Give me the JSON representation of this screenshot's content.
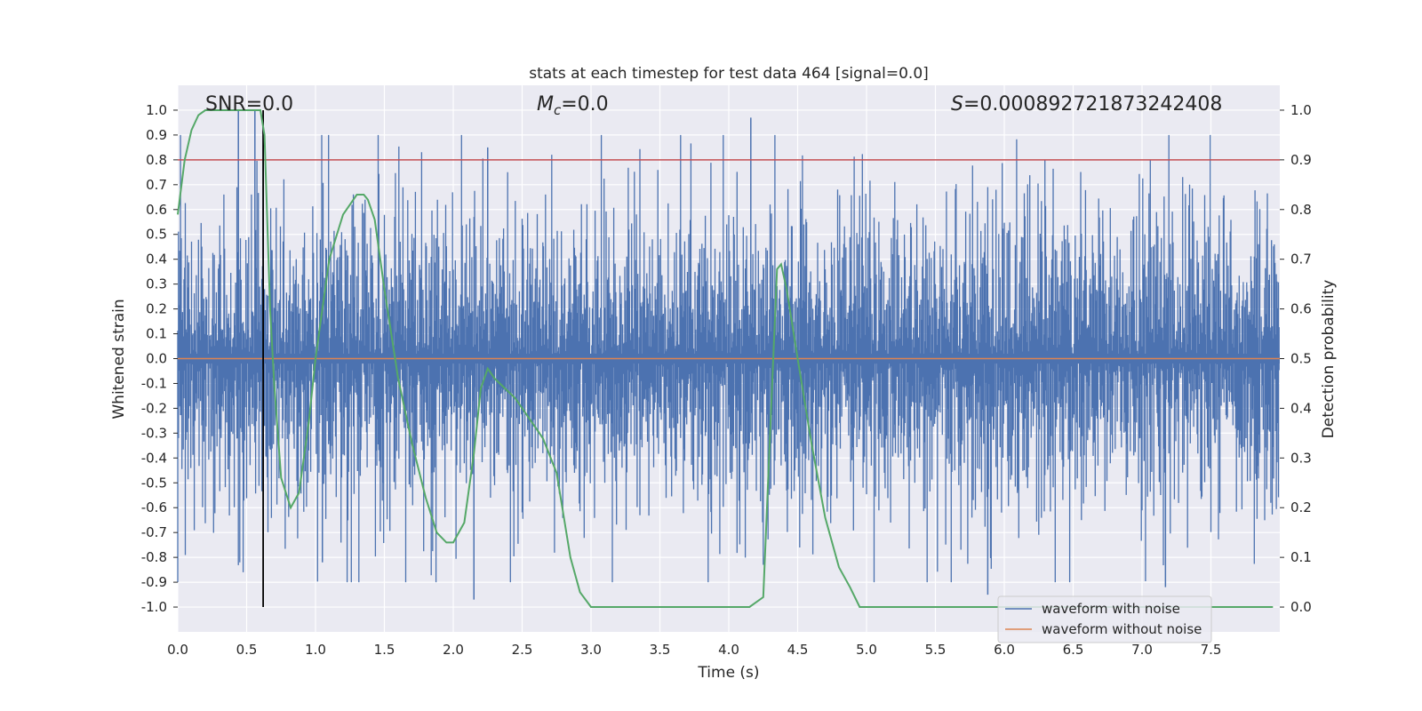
{
  "chart_data": {
    "type": "line",
    "title": "stats at each timestep for test data 464 [signal=0.0]",
    "xlabel": "Time (s)",
    "ylabel": "Whitened strain",
    "y2label": "Detection probability",
    "xlim": [
      0.0,
      8.0
    ],
    "ylim": [
      -1.1,
      1.1
    ],
    "y2lim": [
      -0.05,
      1.05
    ],
    "xticks": [
      0.0,
      0.5,
      1.0,
      1.5,
      2.0,
      2.5,
      3.0,
      3.5,
      4.0,
      4.5,
      5.0,
      5.5,
      6.0,
      6.5,
      7.0,
      7.5
    ],
    "xtick_labels": [
      "0.0",
      "0.5",
      "1.0",
      "1.5",
      "2.0",
      "2.5",
      "3.0",
      "3.5",
      "4.0",
      "4.5",
      "5.0",
      "5.5",
      "6.0",
      "6.5",
      "7.0",
      "7.5"
    ],
    "yticks": [
      1.0,
      0.9,
      0.8,
      0.7,
      0.6,
      0.5,
      0.4,
      0.3,
      0.2,
      0.1,
      0.0,
      -0.1,
      -0.2,
      -0.3,
      -0.4,
      -0.5,
      -0.6,
      -0.7,
      -0.8,
      -0.9,
      -1.0
    ],
    "ytick_labels": [
      "1.0",
      "0.9",
      "0.8",
      "0.7",
      "0.6",
      "0.5",
      "0.4",
      "0.3",
      "0.2",
      "0.1",
      "0.0",
      "-0.1",
      "-0.2",
      "-0.3",
      "-0.4",
      "-0.5",
      "-0.6",
      "-0.7",
      "-0.8",
      "-0.9",
      "-1.0"
    ],
    "y2ticks": [
      1.0,
      0.9,
      0.8,
      0.7,
      0.6,
      0.5,
      0.4,
      0.3,
      0.2,
      0.1,
      0.0
    ],
    "y2tick_labels": [
      "1.0",
      "0.9",
      "0.8",
      "0.7",
      "0.6",
      "0.5",
      "0.4",
      "0.3",
      "0.2",
      "0.1",
      "0.0"
    ],
    "grid": true,
    "legend_position": "lower-right",
    "annotations": {
      "snr": "SNR=0.0",
      "mc": "M c=0.0",
      "mc_symbol": "M",
      "mc_sub": "c",
      "mc_value": "=0.0",
      "s_symbol": "S",
      "s_value": "=0.000892721873242408"
    },
    "series": [
      {
        "name": "waveform with noise",
        "color": "#4c72b0",
        "axis": "left",
        "description_values": "dense whitened strain noise, |y| mostly within 0.6",
        "envelope_typical": 0.6,
        "peaks": [
          [
            0.44,
            1.0
          ],
          [
            0.62,
            0.98
          ],
          [
            0.56,
            1.0
          ],
          [
            4.16,
            0.97
          ],
          [
            2.25,
            0.85
          ],
          [
            2.15,
            -0.97
          ],
          [
            5.88,
            -0.95
          ],
          [
            7.17,
            -0.92
          ],
          [
            1.05,
            -0.82
          ]
        ]
      },
      {
        "name": "waveform without noise",
        "color": "#dd8452",
        "axis": "left",
        "values_constant": 0.0
      },
      {
        "name": "detection probability",
        "color": "#55a868",
        "axis": "right",
        "x": [
          0.0,
          0.05,
          0.1,
          0.15,
          0.2,
          0.3,
          0.4,
          0.5,
          0.55,
          0.6,
          0.63,
          0.67,
          0.7,
          0.75,
          0.82,
          0.88,
          0.95,
          1.0,
          1.1,
          1.2,
          1.3,
          1.35,
          1.38,
          1.43,
          1.5,
          1.6,
          1.7,
          1.8,
          1.88,
          1.95,
          2.0,
          2.08,
          2.15,
          2.2,
          2.25,
          2.3,
          2.45,
          2.55,
          2.65,
          2.75,
          2.85,
          2.92,
          3.0,
          3.5,
          4.0,
          4.15,
          4.25,
          4.3,
          4.35,
          4.38,
          4.42,
          4.5,
          4.6,
          4.7,
          4.8,
          4.88,
          4.95,
          5.5,
          6.0,
          6.5,
          7.0,
          7.5,
          7.95
        ],
        "values": [
          0.79,
          0.9,
          0.96,
          0.99,
          1.0,
          1.0,
          1.0,
          1.0,
          1.0,
          1.0,
          0.95,
          0.6,
          0.45,
          0.26,
          0.2,
          0.23,
          0.37,
          0.5,
          0.7,
          0.79,
          0.83,
          0.83,
          0.82,
          0.78,
          0.64,
          0.46,
          0.33,
          0.22,
          0.15,
          0.13,
          0.13,
          0.17,
          0.31,
          0.44,
          0.48,
          0.46,
          0.42,
          0.38,
          0.34,
          0.27,
          0.1,
          0.03,
          0.0,
          0.0,
          0.0,
          0.0,
          0.02,
          0.35,
          0.68,
          0.69,
          0.64,
          0.5,
          0.33,
          0.18,
          0.08,
          0.04,
          0.0,
          0.0,
          0.0,
          0.0,
          0.0,
          0.0,
          0.0
        ]
      }
    ],
    "reference_lines": [
      {
        "type": "horizontal",
        "axis": "right",
        "value": 0.9,
        "color": "#c44e52"
      },
      {
        "type": "vertical",
        "x": 0.62,
        "color": "#000000"
      }
    ]
  }
}
